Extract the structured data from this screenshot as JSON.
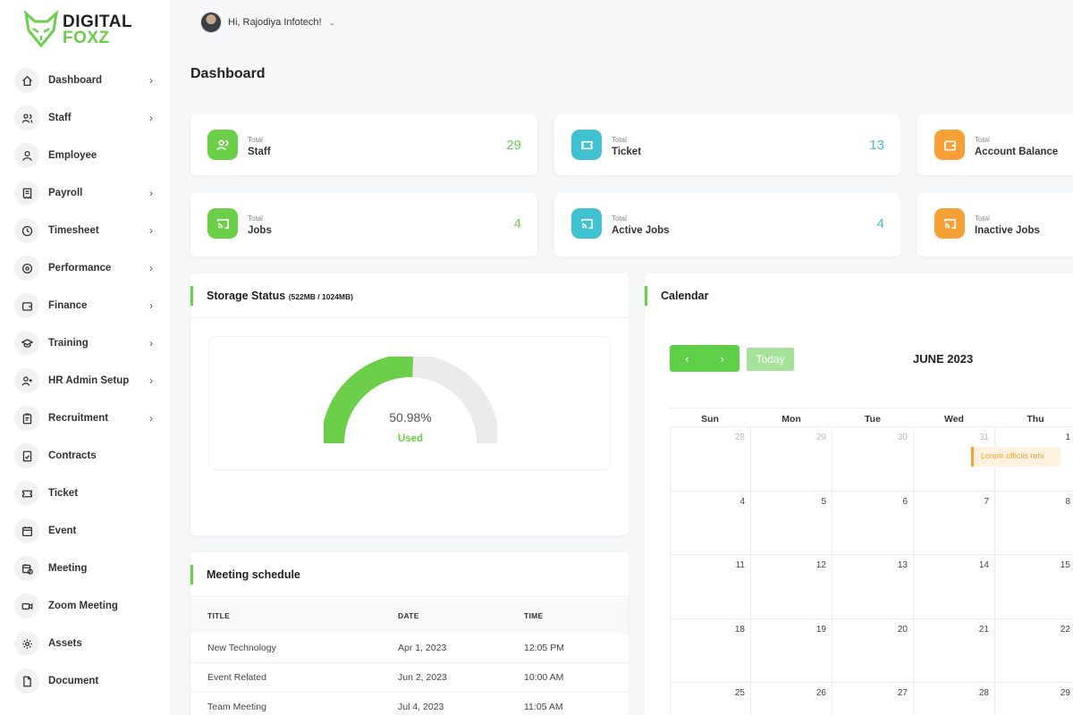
{
  "brand": {
    "line1": "DIGITAL",
    "line2": "FOXZ"
  },
  "header": {
    "greeting": "Hi, Rajodiya Infotech!"
  },
  "page_title": "Dashboard",
  "sidebar": {
    "items": [
      {
        "label": "Dashboard",
        "icon": "home-icon",
        "chevron": true
      },
      {
        "label": "Staff",
        "icon": "users-icon",
        "chevron": true
      },
      {
        "label": "Employee",
        "icon": "user-icon",
        "chevron": false
      },
      {
        "label": "Payroll",
        "icon": "receipt-icon",
        "chevron": true
      },
      {
        "label": "Timesheet",
        "icon": "clock-icon",
        "chevron": true
      },
      {
        "label": "Performance",
        "icon": "target-icon",
        "chevron": true
      },
      {
        "label": "Finance",
        "icon": "wallet-icon",
        "chevron": true
      },
      {
        "label": "Training",
        "icon": "graduation-cap-icon",
        "chevron": true
      },
      {
        "label": "HR Admin Setup",
        "icon": "user-plus-icon",
        "chevron": true
      },
      {
        "label": "Recruitment",
        "icon": "clipboard-icon",
        "chevron": true
      },
      {
        "label": "Contracts",
        "icon": "file-check-icon",
        "chevron": false
      },
      {
        "label": "Ticket",
        "icon": "ticket-icon",
        "chevron": false
      },
      {
        "label": "Event",
        "icon": "calendar-icon",
        "chevron": false
      },
      {
        "label": "Meeting",
        "icon": "calendar-clock-icon",
        "chevron": false
      },
      {
        "label": "Zoom Meeting",
        "icon": "video-icon",
        "chevron": false
      },
      {
        "label": "Assets",
        "icon": "gear-icon",
        "chevron": false
      },
      {
        "label": "Document",
        "icon": "document-icon",
        "chevron": false
      }
    ]
  },
  "stats": [
    {
      "small": "Total",
      "label": "Staff",
      "value": "29",
      "color": "#6ccf4a",
      "icon": "users-icon"
    },
    {
      "small": "Total",
      "label": "Ticket",
      "value": "13",
      "color": "#3ec2d0",
      "icon": "ticket-icon"
    },
    {
      "small": "Total",
      "label": "Account Balance",
      "value": "",
      "color": "#f7a035",
      "icon": "wallet-icon"
    },
    {
      "small": "Total",
      "label": "Jobs",
      "value": "4",
      "color": "#6ccf4a",
      "icon": "cast-icon"
    },
    {
      "small": "Total",
      "label": "Active Jobs",
      "value": "4",
      "color": "#3ec2d0",
      "icon": "cast-icon"
    },
    {
      "small": "Total",
      "label": "Inactive Jobs",
      "value": "",
      "color": "#f7a035",
      "icon": "cast-icon"
    }
  ],
  "storage": {
    "title": "Storage Status",
    "sub": "(522MB / 1024MB)",
    "percent_text": "50.98%",
    "percent": 50.98,
    "used_label": "Used"
  },
  "meetings": {
    "title": "Meeting schedule",
    "headers": [
      "TITLE",
      "DATE",
      "TIME"
    ],
    "rows": [
      [
        "New Technology",
        "Apr 1, 2023",
        "12:05 PM"
      ],
      [
        "Event Related",
        "Jun 2, 2023",
        "10:00 AM"
      ],
      [
        "Team Meeting",
        "Jul 4, 2023",
        "11:05 AM"
      ]
    ]
  },
  "calendar": {
    "title": "Calendar",
    "today_label": "Today",
    "month": "JUNE 2023",
    "days": [
      "Sun",
      "Mon",
      "Tue",
      "Wed",
      "Thu"
    ],
    "weeks": [
      [
        "28",
        "29",
        "30",
        "31",
        "1"
      ],
      [
        "4",
        "5",
        "6",
        "7",
        "8"
      ],
      [
        "11",
        "12",
        "13",
        "14",
        "15"
      ],
      [
        "18",
        "19",
        "20",
        "21",
        "22"
      ],
      [
        "25",
        "26",
        "27",
        "28",
        "29"
      ]
    ],
    "event": "Lorem officiis rehi"
  }
}
